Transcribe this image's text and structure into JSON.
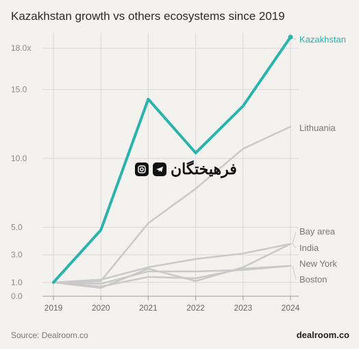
{
  "chart_data": {
    "type": "line",
    "title": "Kazakhstan growth vs others ecosystems since 2019",
    "x": [
      "2019",
      "2020",
      "2021",
      "2022",
      "2023",
      "2024"
    ],
    "y_ticks": [
      "0.0",
      "1.0",
      "3.0",
      "5.0",
      "10.0",
      "15.0",
      "18.0x"
    ],
    "ylim": [
      0,
      18.8
    ],
    "grid": true,
    "series": [
      {
        "name": "Kazakhstan",
        "color": "#2ab3ad",
        "values": [
          1.0,
          4.8,
          14.3,
          10.4,
          13.8,
          18.8
        ]
      },
      {
        "name": "Lithuania",
        "color": "#c9c9c9",
        "values": [
          1.0,
          1.1,
          5.3,
          7.8,
          10.7,
          12.3
        ]
      },
      {
        "name": "Bay area",
        "color": "#c9c9c9",
        "values": [
          1.0,
          1.2,
          2.1,
          2.7,
          3.1,
          3.8
        ]
      },
      {
        "name": "India",
        "color": "#c9c9c9",
        "values": [
          1.0,
          0.6,
          2.0,
          1.1,
          2.1,
          3.8
        ]
      },
      {
        "name": "New York",
        "color": "#c9c9c9",
        "values": [
          1.0,
          0.9,
          1.8,
          1.8,
          1.9,
          2.2
        ]
      },
      {
        "name": "Boston",
        "color": "#c9c9c9",
        "values": [
          1.0,
          0.7,
          1.4,
          1.3,
          2.0,
          2.2
        ]
      }
    ]
  },
  "source": "Source: Dealroom.co",
  "brand": "dealroom.co",
  "watermark": "فرهیختگان"
}
